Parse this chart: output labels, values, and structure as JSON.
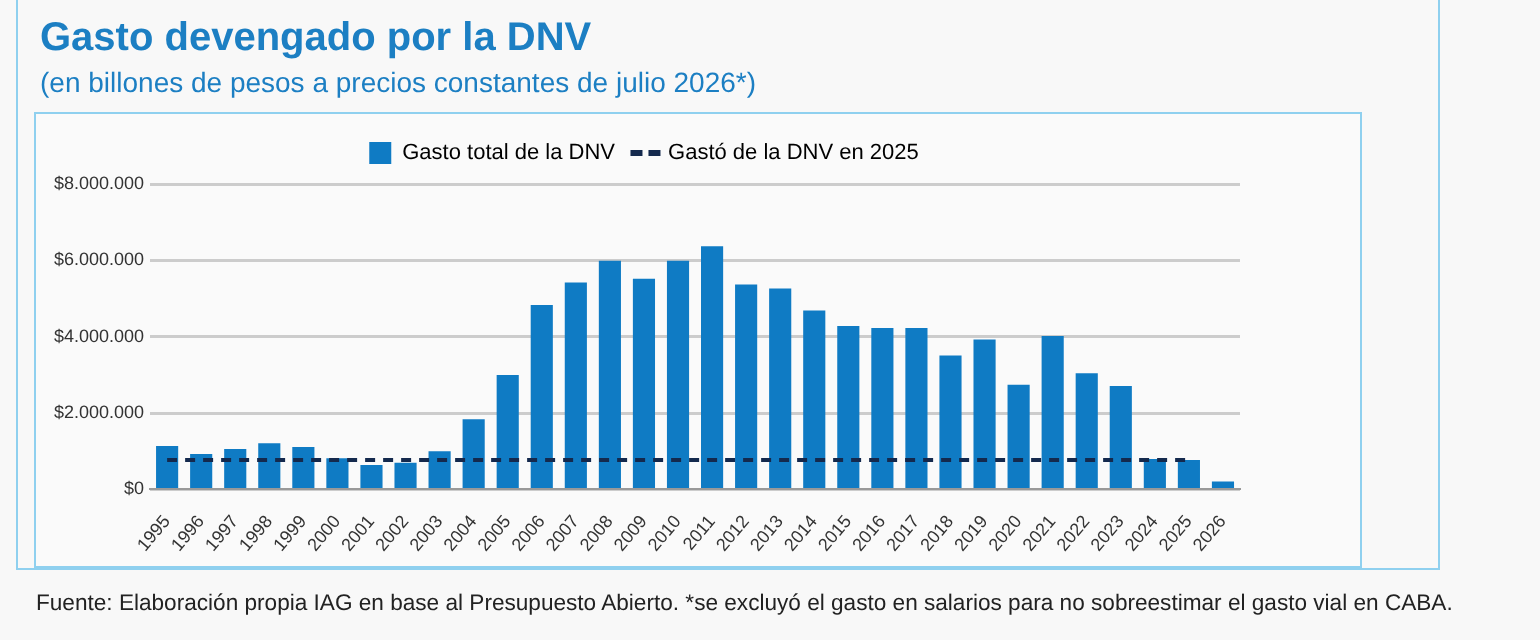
{
  "chart_data": {
    "type": "bar",
    "title": "Gasto devengado por la DNV",
    "subtitle": "(en billones de pesos a precios constantes de julio 2026*)",
    "categories": [
      "1995",
      "1996",
      "1997",
      "1998",
      "1999",
      "2000",
      "2001",
      "2002",
      "2003",
      "2004",
      "2005",
      "2006",
      "2007",
      "2008",
      "2009",
      "2010",
      "2011",
      "2012",
      "2013",
      "2014",
      "2015",
      "2016",
      "2017",
      "2018",
      "2019",
      "2020",
      "2021",
      "2022",
      "2023",
      "2024",
      "2025",
      "2026"
    ],
    "series": [
      {
        "name": "Gasto total de la DNV",
        "color": "#0f7bc4",
        "values": [
          1140000,
          930000,
          1060000,
          1210000,
          1110000,
          820000,
          640000,
          700000,
          1000000,
          1840000,
          3000000,
          4830000,
          5420000,
          5990000,
          5520000,
          5990000,
          6370000,
          5370000,
          5260000,
          4690000,
          4280000,
          4230000,
          4230000,
          3510000,
          3930000,
          2740000,
          4020000,
          3040000,
          2710000,
          800000,
          770000,
          210000
        ]
      },
      {
        "name": "Gastó de la DNV en 2025",
        "type": "line",
        "color": "#14294d",
        "line_style": "dashed",
        "marker": "none",
        "values": [
          770000,
          770000,
          770000,
          770000,
          770000,
          770000,
          770000,
          770000,
          770000,
          770000,
          770000,
          770000,
          770000,
          770000,
          770000,
          770000,
          770000,
          770000,
          770000,
          770000,
          770000,
          770000,
          770000,
          770000,
          770000,
          770000,
          770000,
          770000,
          770000,
          770000,
          770000,
          null
        ]
      }
    ],
    "ylim": [
      0,
      8000000
    ],
    "yticks": [
      {
        "value": 0,
        "label": "$0"
      },
      {
        "value": 2000000,
        "label": "$2.000.000"
      },
      {
        "value": 4000000,
        "label": "$4.000.000"
      },
      {
        "value": 6000000,
        "label": "$6.000.000"
      },
      {
        "value": 8000000,
        "label": "$8.000.000"
      }
    ],
    "grid": "y",
    "legend": "top",
    "annotations": [
      "Fuente: Elaboración propia IAG en base al Presupuesto Abierto. *se excluyó el gasto en salarios para no sobreestimar el gasto vial en CABA."
    ]
  }
}
